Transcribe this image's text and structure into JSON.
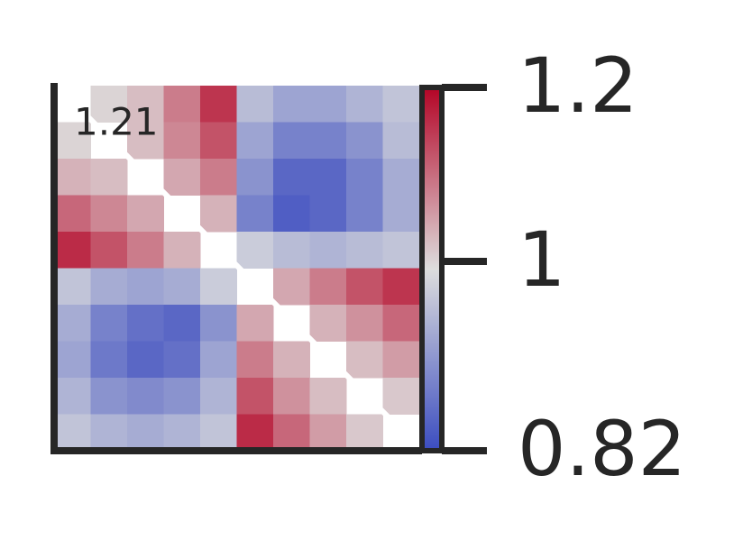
{
  "chart_data": {
    "type": "heatmap",
    "annotation": "1.21",
    "z": [
      [
        null,
        1.0,
        1.02,
        1.08,
        1.15,
        0.95,
        0.92,
        0.92,
        0.94,
        0.96
      ],
      [
        1.0,
        null,
        1.02,
        1.07,
        1.12,
        0.92,
        0.88,
        0.88,
        0.9,
        0.95
      ],
      [
        1.03,
        1.02,
        null,
        1.04,
        1.08,
        0.9,
        0.85,
        0.85,
        0.88,
        0.93
      ],
      [
        1.1,
        1.07,
        1.04,
        null,
        1.03,
        0.88,
        0.84,
        0.85,
        0.88,
        0.93
      ],
      [
        1.16,
        1.12,
        1.08,
        1.03,
        null,
        0.97,
        0.95,
        0.94,
        0.95,
        0.96
      ],
      [
        0.96,
        0.93,
        0.92,
        0.93,
        0.97,
        null,
        1.04,
        1.08,
        1.12,
        1.15
      ],
      [
        0.93,
        0.88,
        0.86,
        0.85,
        0.9,
        1.04,
        null,
        1.03,
        1.06,
        1.1
      ],
      [
        0.92,
        0.87,
        0.85,
        0.86,
        0.92,
        1.08,
        1.03,
        null,
        1.02,
        1.05
      ],
      [
        0.94,
        0.9,
        0.89,
        0.9,
        0.94,
        1.12,
        1.06,
        1.02,
        null,
        1.01
      ],
      [
        0.96,
        0.94,
        0.93,
        0.94,
        0.96,
        1.16,
        1.1,
        1.05,
        1.01,
        null
      ]
    ],
    "clim": [
      0.82,
      1.2
    ],
    "cticks": [
      0.82,
      1,
      1.2
    ],
    "log_color": true,
    "cmap": [
      "#3b4cc0",
      "#dddddd",
      "#b40426"
    ]
  }
}
